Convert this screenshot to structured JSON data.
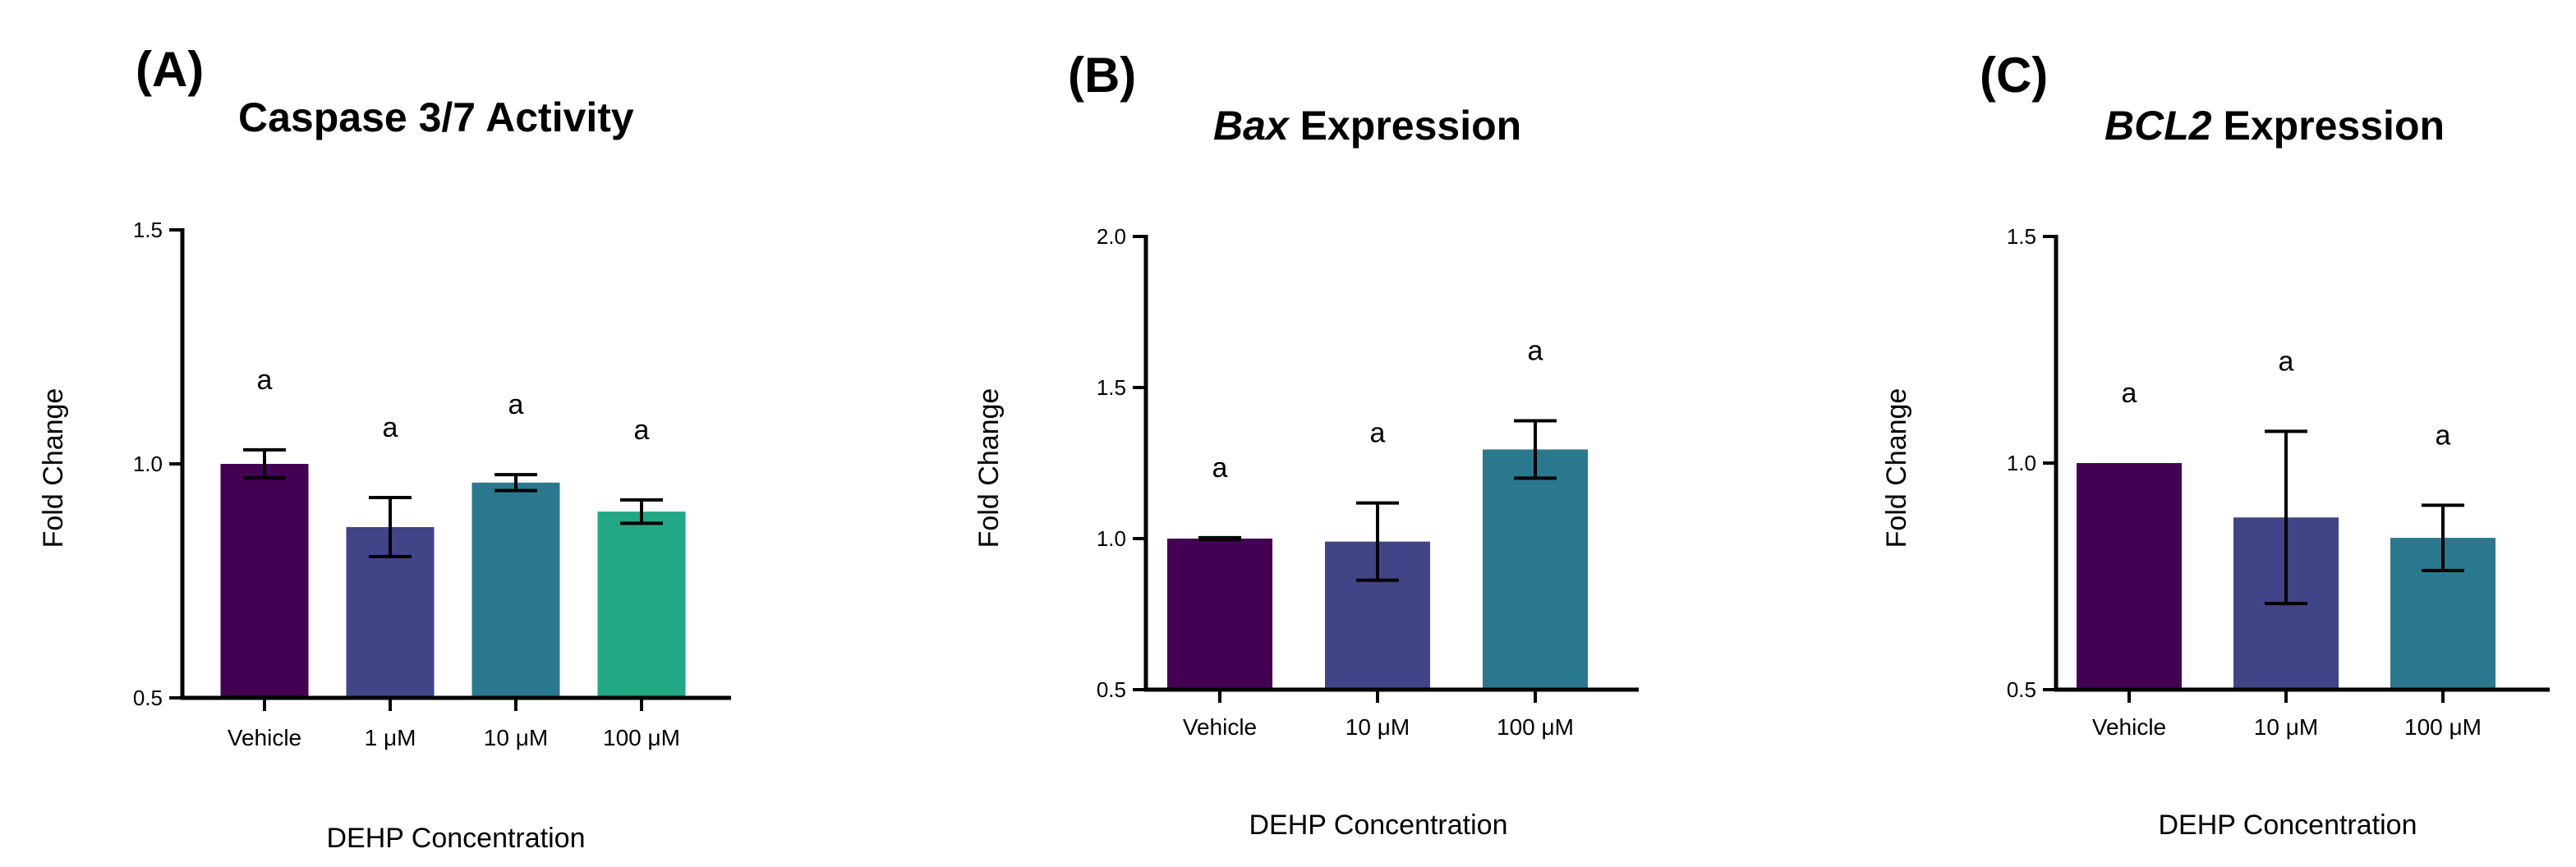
{
  "colors": {
    "vehicle": "#440154",
    "c1": "#414487",
    "c10": "#2A788E",
    "c100": "#22A884"
  },
  "chart_data": [
    {
      "panel": "(A)",
      "type": "bar",
      "title_italic": "",
      "title": "Caspase 3/7 Activity",
      "xlabel": "DEHP Concentration",
      "ylabel": "Fold Change",
      "ylim": [
        0.5,
        1.5
      ],
      "yticks": [
        "0.5",
        "1.0",
        "1.5"
      ],
      "categories": [
        "Vehicle",
        "1 μM",
        "10 μM",
        "100 μM"
      ],
      "values": [
        1.0,
        0.865,
        0.96,
        0.898
      ],
      "errors": [
        0.03,
        0.063,
        0.017,
        0.025
      ],
      "significance": [
        "a",
        "a",
        "a",
        "a"
      ],
      "bar_colors": [
        "#440154",
        "#414487",
        "#2A788E",
        "#22A884"
      ]
    },
    {
      "panel": "(B)",
      "type": "bar",
      "title_italic": "Bax",
      "title": " Expression",
      "xlabel": "DEHP Concentration",
      "ylabel": "Fold Change",
      "ylim": [
        0.5,
        2.0
      ],
      "yticks": [
        "0.5",
        "1.0",
        "1.5",
        "2.0"
      ],
      "categories": [
        "Vehicle",
        "10 μM",
        "100 μM"
      ],
      "values": [
        1.0,
        0.99,
        1.295
      ],
      "errors": [
        0.003,
        0.128,
        0.095
      ],
      "significance": [
        "a",
        "a",
        "a"
      ],
      "bar_colors": [
        "#440154",
        "#414487",
        "#2A788E"
      ]
    },
    {
      "panel": "(C)",
      "type": "bar",
      "title_italic": "BCL2",
      "title": " Expression",
      "xlabel": "DEHP Concentration",
      "ylabel": "Fold Change",
      "ylim": [
        0.5,
        1.5
      ],
      "yticks": [
        "0.5",
        "1.0",
        "1.5"
      ],
      "categories": [
        "Vehicle",
        "10 μM",
        "100 μM"
      ],
      "values": [
        1.0,
        0.88,
        0.835
      ],
      "errors": [
        0.0,
        0.19,
        0.072
      ],
      "significance": [
        "a",
        "a",
        "a"
      ],
      "bar_colors": [
        "#440154",
        "#414487",
        "#2A788E"
      ]
    }
  ]
}
